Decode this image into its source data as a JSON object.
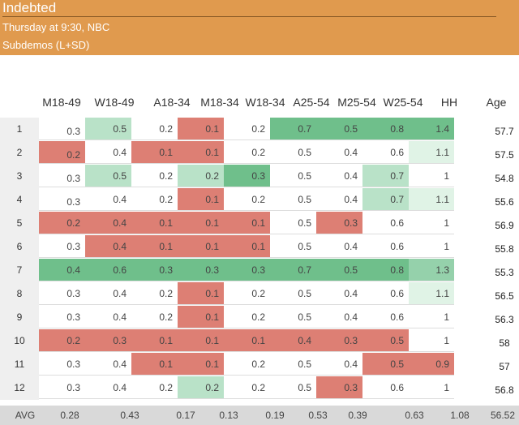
{
  "header": {
    "title": "Indebted",
    "airing": "Thursday at 9:30, NBC",
    "mode": "Subdemos (L+SD)"
  },
  "columns": [
    "M18-49",
    "W18-49",
    "A18-34",
    "M18-34",
    "W18-34",
    "A25-54",
    "M25-54",
    "W25-54",
    "HH",
    "Age"
  ],
  "rows": [
    {
      "label": "1",
      "values": [
        "0.3",
        "0.5",
        "0.2",
        "0.1",
        "0.2",
        "0.7",
        "0.5",
        "0.8",
        "1.4"
      ],
      "age": "57.7"
    },
    {
      "label": "2",
      "values": [
        "0.2",
        "0.4",
        "0.1",
        "0.1",
        "0.2",
        "0.5",
        "0.4",
        "0.6",
        "1.1"
      ],
      "age": "57.5"
    },
    {
      "label": "3",
      "values": [
        "0.3",
        "0.5",
        "0.2",
        "0.2",
        "0.3",
        "0.5",
        "0.4",
        "0.7",
        "1"
      ],
      "age": "54.8"
    },
    {
      "label": "4",
      "values": [
        "0.3",
        "0.4",
        "0.2",
        "0.1",
        "0.2",
        "0.5",
        "0.4",
        "0.7",
        "1.1"
      ],
      "age": "55.6"
    },
    {
      "label": "5",
      "values": [
        "0.2",
        "0.4",
        "0.1",
        "0.1",
        "0.1",
        "0.5",
        "0.3",
        "0.6",
        "1"
      ],
      "age": "56.9"
    },
    {
      "label": "6",
      "values": [
        "0.3",
        "0.4",
        "0.1",
        "0.1",
        "0.1",
        "0.5",
        "0.4",
        "0.6",
        "1"
      ],
      "age": "55.8"
    },
    {
      "label": "7",
      "values": [
        "0.4",
        "0.6",
        "0.3",
        "0.3",
        "0.3",
        "0.7",
        "0.5",
        "0.8",
        "1.3"
      ],
      "age": "55.3"
    },
    {
      "label": "8",
      "values": [
        "0.3",
        "0.4",
        "0.2",
        "0.1",
        "0.2",
        "0.5",
        "0.4",
        "0.6",
        "1.1"
      ],
      "age": "56.5"
    },
    {
      "label": "9",
      "values": [
        "0.3",
        "0.4",
        "0.2",
        "0.1",
        "0.2",
        "0.5",
        "0.4",
        "0.6",
        "1"
      ],
      "age": "56.3"
    },
    {
      "label": "10",
      "values": [
        "0.2",
        "0.3",
        "0.1",
        "0.1",
        "0.1",
        "0.4",
        "0.3",
        "0.5",
        "1"
      ],
      "age": "58"
    },
    {
      "label": "11",
      "values": [
        "0.3",
        "0.4",
        "0.1",
        "0.1",
        "0.2",
        "0.5",
        "0.4",
        "0.5",
        "0.9"
      ],
      "age": "57"
    },
    {
      "label": "12",
      "values": [
        "0.3",
        "0.4",
        "0.2",
        "0.2",
        "0.2",
        "0.5",
        "0.3",
        "0.6",
        "1"
      ],
      "age": "56.8"
    }
  ],
  "cell_colors": [
    [
      "",
      "g2",
      "",
      "red",
      "",
      "g4",
      "g4",
      "g4",
      "g4"
    ],
    [
      "red",
      "",
      "red",
      "red",
      "",
      "",
      "",
      "",
      "g1"
    ],
    [
      "",
      "g2",
      "",
      "g2",
      "g4",
      "",
      "",
      "g2",
      ""
    ],
    [
      "",
      "",
      "",
      "red",
      "",
      "",
      "",
      "g2",
      "g1"
    ],
    [
      "red",
      "red",
      "red",
      "red",
      "red",
      "",
      "red",
      "",
      ""
    ],
    [
      "",
      "red",
      "red",
      "red",
      "red",
      "",
      "",
      "",
      ""
    ],
    [
      "g4",
      "g4",
      "g4",
      "g4",
      "g4",
      "g4",
      "g4",
      "g4",
      "g3"
    ],
    [
      "",
      "",
      "",
      "red",
      "",
      "",
      "",
      "",
      "g1"
    ],
    [
      "",
      "",
      "",
      "red",
      "",
      "",
      "",
      "",
      ""
    ],
    [
      "red",
      "red",
      "red",
      "red",
      "red",
      "red",
      "red",
      "red",
      ""
    ],
    [
      "",
      "",
      "red",
      "red",
      "",
      "",
      "",
      "red",
      "red"
    ],
    [
      "",
      "",
      "",
      "g2",
      "",
      "",
      "red",
      "",
      ""
    ]
  ],
  "average": {
    "label": "AVG",
    "values": [
      "0.28",
      "0.43",
      "0.17",
      "0.13",
      "0.19",
      "0.53",
      "0.39",
      "0.63",
      "1.08",
      "56.52"
    ]
  }
}
